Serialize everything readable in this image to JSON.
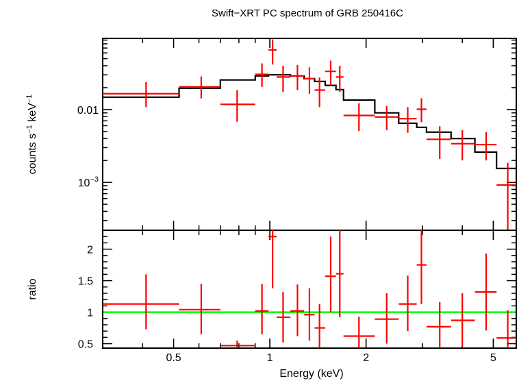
{
  "chart_data": [
    {
      "type": "scatter",
      "panel": "spectrum",
      "title": "Swift−XRT PC spectrum of GRB 250416C",
      "ylabel_main": "counts s",
      "ylabel_sup1": "−1",
      "ylabel_unit": " keV",
      "ylabel_sup2": "−1",
      "yscale": "log",
      "xscale": "log",
      "xlim": [
        0.3,
        5.9
      ],
      "ylim": [
        0.00022,
        0.095
      ],
      "yticks": [
        {
          "value": 0.01,
          "base": "0.01",
          "exp": ""
        },
        {
          "value": 0.001,
          "base": "10",
          "exp": "−3"
        }
      ],
      "colors": {
        "data": "#ff0000",
        "model": "#000000"
      },
      "series": [
        {
          "points": [
            {
              "x": 0.41,
              "xlo": 0.3,
              "xhi": 0.52,
              "y": 0.0165,
              "ylo": 0.0108,
              "yhi": 0.0238
            },
            {
              "x": 0.61,
              "xlo": 0.52,
              "xhi": 0.7,
              "y": 0.0205,
              "ylo": 0.0142,
              "yhi": 0.0285
            },
            {
              "x": 0.79,
              "xlo": 0.7,
              "xhi": 0.9,
              "y": 0.0118,
              "ylo": 0.0068,
              "yhi": 0.0185
            },
            {
              "x": 0.945,
              "xlo": 0.9,
              "xhi": 0.99,
              "y": 0.0305,
              "ylo": 0.0205,
              "yhi": 0.043
            },
            {
              "x": 1.02,
              "xlo": 0.99,
              "xhi": 1.05,
              "y": 0.066,
              "ylo": 0.0415,
              "yhi": 0.092
            },
            {
              "x": 1.1,
              "xlo": 1.05,
              "xhi": 1.16,
              "y": 0.028,
              "ylo": 0.0175,
              "yhi": 0.04
            },
            {
              "x": 1.22,
              "xlo": 1.16,
              "xhi": 1.28,
              "y": 0.029,
              "ylo": 0.0185,
              "yhi": 0.041
            },
            {
              "x": 1.33,
              "xlo": 1.28,
              "xhi": 1.38,
              "y": 0.0265,
              "ylo": 0.0165,
              "yhi": 0.038
            },
            {
              "x": 1.43,
              "xlo": 1.38,
              "xhi": 1.49,
              "y": 0.0185,
              "ylo": 0.0108,
              "yhi": 0.0275
            },
            {
              "x": 1.55,
              "xlo": 1.49,
              "xhi": 1.61,
              "y": 0.0335,
              "ylo": 0.0215,
              "yhi": 0.047
            },
            {
              "x": 1.655,
              "xlo": 1.61,
              "xhi": 1.7,
              "y": 0.028,
              "ylo": 0.0175,
              "yhi": 0.04
            },
            {
              "x": 1.9,
              "xlo": 1.7,
              "xhi": 2.13,
              "y": 0.0083,
              "ylo": 0.0051,
              "yhi": 0.0122
            },
            {
              "x": 2.32,
              "xlo": 2.13,
              "xhi": 2.53,
              "y": 0.0079,
              "ylo": 0.0052,
              "yhi": 0.0112
            },
            {
              "x": 2.7,
              "xlo": 2.53,
              "xhi": 2.88,
              "y": 0.0075,
              "ylo": 0.0048,
              "yhi": 0.0108
            },
            {
              "x": 2.98,
              "xlo": 2.88,
              "xhi": 3.09,
              "y": 0.0101,
              "ylo": 0.0067,
              "yhi": 0.0143
            },
            {
              "x": 3.4,
              "xlo": 3.09,
              "xhi": 3.69,
              "y": 0.0039,
              "ylo": 0.0021,
              "yhi": 0.0059
            },
            {
              "x": 4.0,
              "xlo": 3.69,
              "xhi": 4.38,
              "y": 0.0034,
              "ylo": 0.002,
              "yhi": 0.0052
            },
            {
              "x": 4.75,
              "xlo": 4.38,
              "xhi": 5.12,
              "y": 0.0033,
              "ylo": 0.002,
              "yhi": 0.0049
            },
            {
              "x": 5.55,
              "xlo": 5.12,
              "xhi": 5.9,
              "y": 0.00092,
              "ylo": 0.00022,
              "yhi": 0.00185
            }
          ]
        },
        {
          "kind": "model-step",
          "edges": [
            0.3,
            0.52,
            0.7,
            0.9,
            0.99,
            1.05,
            1.16,
            1.28,
            1.38,
            1.49,
            1.61,
            1.7,
            2.13,
            2.53,
            2.88,
            3.09,
            3.69,
            4.38,
            5.12,
            5.9
          ],
          "values": [
            0.0148,
            0.0196,
            0.0255,
            0.029,
            0.03,
            0.03,
            0.029,
            0.0265,
            0.0243,
            0.0215,
            0.0188,
            0.0135,
            0.009,
            0.0065,
            0.0057,
            0.0049,
            0.004,
            0.0026,
            0.00155
          ]
        }
      ]
    },
    {
      "type": "scatter",
      "panel": "ratio",
      "xlabel": "Energy (keV)",
      "ylabel": "ratio",
      "xscale": "log",
      "xlim": [
        0.3,
        5.9
      ],
      "ylim": [
        0.43,
        2.3
      ],
      "xticks": [
        {
          "value": 0.5,
          "label": "0.5"
        },
        {
          "value": 1,
          "label": "1"
        },
        {
          "value": 2,
          "label": "2"
        },
        {
          "value": 5,
          "label": "5"
        }
      ],
      "yticks": [
        {
          "value": 0.5,
          "label": "0.5"
        },
        {
          "value": 1,
          "label": "1"
        },
        {
          "value": 1.5,
          "label": "1.5"
        },
        {
          "value": 2,
          "label": "2"
        }
      ],
      "reference_line": 1,
      "colors": {
        "data": "#ff0000",
        "reference": "#00ff00"
      },
      "series": [
        {
          "points": [
            {
              "x": 0.41,
              "xlo": 0.3,
              "xhi": 0.52,
              "y": 1.13,
              "ylo": 0.73,
              "yhi": 1.6
            },
            {
              "x": 0.61,
              "xlo": 0.52,
              "xhi": 0.7,
              "y": 1.04,
              "ylo": 0.65,
              "yhi": 1.45
            },
            {
              "x": 0.79,
              "xlo": 0.7,
              "xhi": 0.9,
              "y": 0.47,
              "ylo": 0.43,
              "yhi": 0.55
            },
            {
              "x": 0.945,
              "xlo": 0.9,
              "xhi": 0.99,
              "y": 1.02,
              "ylo": 0.65,
              "yhi": 1.45
            },
            {
              "x": 1.02,
              "xlo": 0.99,
              "xhi": 1.05,
              "y": 2.2,
              "ylo": 1.38,
              "yhi": 2.3
            },
            {
              "x": 1.1,
              "xlo": 1.05,
              "xhi": 1.16,
              "y": 0.92,
              "ylo": 0.52,
              "yhi": 1.32
            },
            {
              "x": 1.22,
              "xlo": 1.16,
              "xhi": 1.28,
              "y": 1.02,
              "ylo": 0.62,
              "yhi": 1.44
            },
            {
              "x": 1.33,
              "xlo": 1.28,
              "xhi": 1.38,
              "y": 0.96,
              "ylo": 0.55,
              "yhi": 1.38
            },
            {
              "x": 1.43,
              "xlo": 1.38,
              "xhi": 1.49,
              "y": 0.75,
              "ylo": 0.43,
              "yhi": 1.13
            },
            {
              "x": 1.55,
              "xlo": 1.49,
              "xhi": 1.61,
              "y": 1.57,
              "ylo": 1.0,
              "yhi": 2.2
            },
            {
              "x": 1.655,
              "xlo": 1.61,
              "xhi": 1.7,
              "y": 1.61,
              "ylo": 0.92,
              "yhi": 2.3
            },
            {
              "x": 1.9,
              "xlo": 1.7,
              "xhi": 2.13,
              "y": 0.62,
              "ylo": 0.43,
              "yhi": 0.93
            },
            {
              "x": 2.32,
              "xlo": 2.13,
              "xhi": 2.53,
              "y": 0.89,
              "ylo": 0.5,
              "yhi": 1.3
            },
            {
              "x": 2.7,
              "xlo": 2.53,
              "xhi": 2.88,
              "y": 1.13,
              "ylo": 0.7,
              "yhi": 1.58
            },
            {
              "x": 2.98,
              "xlo": 2.88,
              "xhi": 3.09,
              "y": 1.75,
              "ylo": 1.13,
              "yhi": 2.3
            },
            {
              "x": 3.4,
              "xlo": 3.09,
              "xhi": 3.69,
              "y": 0.77,
              "ylo": 0.43,
              "yhi": 1.16
            },
            {
              "x": 4.0,
              "xlo": 3.69,
              "xhi": 4.38,
              "y": 0.87,
              "ylo": 0.45,
              "yhi": 1.3
            },
            {
              "x": 4.75,
              "xlo": 4.38,
              "xhi": 5.12,
              "y": 1.32,
              "ylo": 0.71,
              "yhi": 1.93
            },
            {
              "x": 5.55,
              "xlo": 5.12,
              "xhi": 5.9,
              "y": 0.59,
              "ylo": 0.43,
              "yhi": 1.03
            }
          ]
        }
      ]
    }
  ]
}
